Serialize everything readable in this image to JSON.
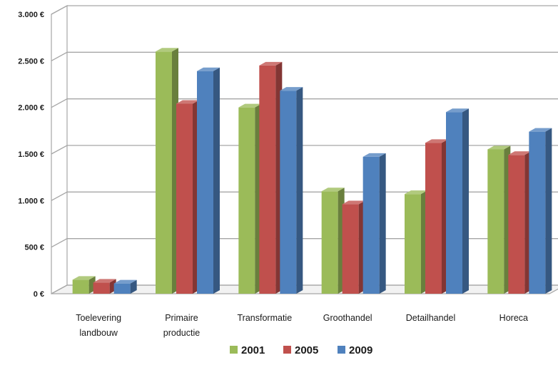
{
  "chart_data": {
    "type": "bar",
    "title": "",
    "xlabel": "",
    "ylabel": "",
    "categories": [
      [
        "Toelevering",
        "landbouw"
      ],
      [
        "Primaire",
        "productie"
      ],
      [
        "Transformatie"
      ],
      [
        "Groothandel"
      ],
      [
        "Detailhandel"
      ],
      [
        "Horeca"
      ]
    ],
    "series": [
      {
        "name": "2001",
        "color": "#9bbb59",
        "values": [
          150,
          2600,
          2000,
          1100,
          1070,
          1550
        ]
      },
      {
        "name": "2005",
        "color": "#c0504d",
        "values": [
          120,
          2040,
          2450,
          960,
          1620,
          1490
        ]
      },
      {
        "name": "2009",
        "color": "#4f81bd",
        "values": [
          110,
          2390,
          2180,
          1470,
          1950,
          1740
        ]
      }
    ],
    "ylim": [
      0,
      3000
    ],
    "yticks": [
      0,
      500,
      1000,
      1500,
      2000,
      2500,
      3000
    ],
    "ytick_labels": [
      "0 €",
      "500 €",
      "1.000 €",
      "1.500 €",
      "2.000 €",
      "2.500 €",
      "3.000 €"
    ],
    "grid": true,
    "legend_position": "bottom"
  }
}
